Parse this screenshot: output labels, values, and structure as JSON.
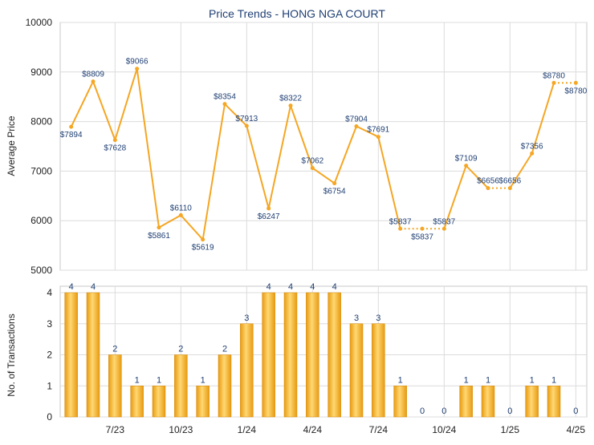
{
  "chart_data": [
    {
      "type": "line",
      "title": "Price Trends - HONG NGA COURT",
      "ylabel": "Average Price",
      "ylim": [
        5000,
        10000
      ],
      "yticks": [
        "5000",
        "6000",
        "7000",
        "8000",
        "9000",
        "10000"
      ],
      "grid": true,
      "series": [
        {
          "color": "#f5a623",
          "points": [
            {
              "value": 7894,
              "label": "$7894"
            },
            {
              "value": 8809,
              "label": "$8809"
            },
            {
              "value": 7628,
              "label": "$7628"
            },
            {
              "value": 9066,
              "label": "$9066"
            },
            {
              "value": 5861,
              "label": "$5861"
            },
            {
              "value": 6110,
              "label": "$6110"
            },
            {
              "value": 5619,
              "label": "$5619"
            },
            {
              "value": 8354,
              "label": "$8354"
            },
            {
              "value": 7913,
              "label": "$7913"
            },
            {
              "value": 6247,
              "label": "$6247"
            },
            {
              "value": 8322,
              "label": "$8322"
            },
            {
              "value": 7062,
              "label": "$7062"
            },
            {
              "value": 6754,
              "label": "$6754"
            },
            {
              "value": 7904,
              "label": "$7904"
            },
            {
              "value": 7691,
              "label": "$7691"
            },
            {
              "value": 5837,
              "label": "$5837"
            },
            {
              "value": 5837,
              "label": "$5837"
            },
            {
              "value": 5837,
              "label": "$5837"
            },
            {
              "value": 7109,
              "label": "$7109"
            },
            {
              "value": 6656,
              "label": "$6656"
            },
            {
              "value": 6656,
              "label": "$6656"
            },
            {
              "value": 7356,
              "label": "$7356"
            },
            {
              "value": 8780,
              "label": "$8780"
            },
            {
              "value": 8780,
              "label": "$8780"
            }
          ]
        }
      ]
    },
    {
      "type": "bar",
      "ylabel": "No. of Transactions",
      "ylim": [
        0,
        4
      ],
      "yticks": [
        "0",
        "1",
        "2",
        "3",
        "4"
      ],
      "grid": true,
      "xticks": [
        {
          "label": "7/23",
          "index": 2
        },
        {
          "label": "10/23",
          "index": 5
        },
        {
          "label": "1/24",
          "index": 8
        },
        {
          "label": "4/24",
          "index": 11
        },
        {
          "label": "7/24",
          "index": 14
        },
        {
          "label": "10/24",
          "index": 17
        },
        {
          "label": "1/25",
          "index": 20
        },
        {
          "label": "4/25",
          "index": 23
        }
      ],
      "values": [
        4,
        4,
        2,
        1,
        1,
        2,
        1,
        2,
        3,
        4,
        4,
        4,
        4,
        3,
        3,
        1,
        0,
        0,
        1,
        1,
        0,
        1,
        1,
        0
      ],
      "color": "#f5a623"
    }
  ]
}
